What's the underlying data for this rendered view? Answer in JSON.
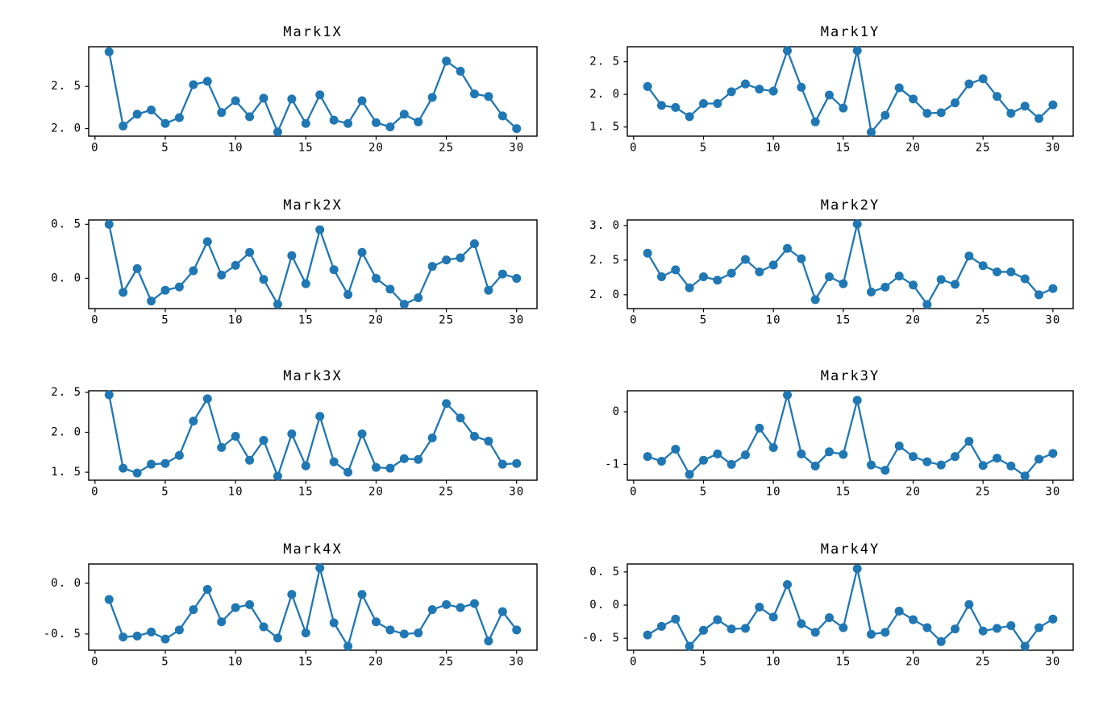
{
  "figure": {
    "background_color": "#ffffff",
    "accent_color": "#1f77b4",
    "axis_color": "#000000",
    "grid": false,
    "legend": null
  },
  "chart_data": [
    {
      "type": "line",
      "title": "Mark1X",
      "xlabel": "",
      "ylabel": "",
      "x": [
        1,
        2,
        3,
        4,
        5,
        6,
        7,
        8,
        9,
        10,
        11,
        12,
        13,
        14,
        15,
        16,
        17,
        18,
        19,
        20,
        21,
        22,
        23,
        24,
        25,
        26,
        27,
        28,
        29,
        30
      ],
      "values": [
        2.91,
        2.03,
        2.17,
        2.22,
        2.06,
        2.13,
        2.52,
        2.56,
        2.19,
        2.33,
        2.14,
        2.36,
        1.96,
        2.35,
        2.06,
        2.4,
        2.1,
        2.06,
        2.33,
        2.07,
        2.02,
        2.17,
        2.08,
        2.37,
        2.8,
        2.68,
        2.41,
        2.38,
        2.15,
        2.0
      ],
      "xlim": [
        -0.45,
        31.45
      ],
      "ylim": [
        1.91,
        2.97
      ],
      "xtick_values": [
        0,
        5,
        10,
        15,
        20,
        25,
        30
      ],
      "xtick_labels": [
        "0",
        "5",
        "10",
        "15",
        "20",
        "25",
        "30"
      ],
      "ytick_values": [
        2.5,
        2.0
      ],
      "ytick_labels": [
        "2. 5",
        "2. 0"
      ]
    },
    {
      "type": "line",
      "title": "Mark1Y",
      "xlabel": "",
      "ylabel": "",
      "x": [
        1,
        2,
        3,
        4,
        5,
        6,
        7,
        8,
        9,
        10,
        11,
        12,
        13,
        14,
        15,
        16,
        17,
        18,
        19,
        20,
        21,
        22,
        23,
        24,
        25,
        26,
        27,
        28,
        29,
        30
      ],
      "values": [
        2.12,
        1.83,
        1.8,
        1.66,
        1.86,
        1.86,
        2.04,
        2.16,
        2.08,
        2.05,
        2.67,
        2.11,
        1.58,
        1.99,
        1.79,
        2.67,
        1.42,
        1.68,
        2.1,
        1.93,
        1.71,
        1.72,
        1.87,
        2.16,
        2.24,
        1.97,
        1.71,
        1.82,
        1.63,
        1.84
      ],
      "xlim": [
        -0.45,
        31.45
      ],
      "ylim": [
        1.36,
        2.73
      ],
      "xtick_values": [
        0,
        5,
        10,
        15,
        20,
        25,
        30
      ],
      "xtick_labels": [
        "0",
        "5",
        "10",
        "15",
        "20",
        "25",
        "30"
      ],
      "ytick_values": [
        2.5,
        2.0,
        1.5
      ],
      "ytick_labels": [
        "2. 5",
        "2. 0",
        "1. 5"
      ]
    },
    {
      "type": "line",
      "title": "Mark2X",
      "xlabel": "",
      "ylabel": "",
      "x": [
        1,
        2,
        3,
        4,
        5,
        6,
        7,
        8,
        9,
        10,
        11,
        12,
        13,
        14,
        15,
        16,
        17,
        18,
        19,
        20,
        21,
        22,
        23,
        24,
        25,
        26,
        27,
        28,
        29,
        30
      ],
      "values": [
        0.5,
        -0.13,
        0.09,
        -0.21,
        -0.11,
        -0.08,
        0.07,
        0.34,
        0.03,
        0.12,
        0.24,
        -0.01,
        -0.24,
        0.21,
        -0.05,
        0.45,
        0.08,
        -0.15,
        0.24,
        0.0,
        -0.1,
        -0.24,
        -0.18,
        0.11,
        0.17,
        0.19,
        0.32,
        -0.11,
        0.04,
        0.0
      ],
      "xlim": [
        -0.45,
        31.45
      ],
      "ylim": [
        -0.28,
        0.54
      ],
      "xtick_values": [
        0,
        5,
        10,
        15,
        20,
        25,
        30
      ],
      "xtick_labels": [
        "0",
        "5",
        "10",
        "15",
        "20",
        "25",
        "30"
      ],
      "ytick_values": [
        0.5,
        0.0
      ],
      "ytick_labels": [
        "0. 5",
        "0. 0"
      ]
    },
    {
      "type": "line",
      "title": "Mark2Y",
      "xlabel": "",
      "ylabel": "",
      "x": [
        1,
        2,
        3,
        4,
        5,
        6,
        7,
        8,
        9,
        10,
        11,
        12,
        13,
        14,
        15,
        16,
        17,
        18,
        19,
        20,
        21,
        22,
        23,
        24,
        25,
        26,
        27,
        28,
        29,
        30
      ],
      "values": [
        2.6,
        2.26,
        2.36,
        2.1,
        2.26,
        2.21,
        2.31,
        2.51,
        2.33,
        2.43,
        2.67,
        2.52,
        1.93,
        2.26,
        2.16,
        3.02,
        2.04,
        2.11,
        2.27,
        2.14,
        1.86,
        2.22,
        2.15,
        2.56,
        2.42,
        2.33,
        2.33,
        2.23,
        2.0,
        2.09
      ],
      "xlim": [
        -0.45,
        31.45
      ],
      "ylim": [
        1.8,
        3.08
      ],
      "xtick_values": [
        0,
        5,
        10,
        15,
        20,
        25,
        30
      ],
      "xtick_labels": [
        "0",
        "5",
        "10",
        "15",
        "20",
        "25",
        "30"
      ],
      "ytick_values": [
        3.0,
        2.5,
        2.0
      ],
      "ytick_labels": [
        "3. 0",
        "2. 5",
        "2. 0"
      ]
    },
    {
      "type": "line",
      "title": "Mark3X",
      "xlabel": "",
      "ylabel": "",
      "x": [
        1,
        2,
        3,
        4,
        5,
        6,
        7,
        8,
        9,
        10,
        11,
        12,
        13,
        14,
        15,
        16,
        17,
        18,
        19,
        20,
        21,
        22,
        23,
        24,
        25,
        26,
        27,
        28,
        29,
        30
      ],
      "values": [
        2.47,
        1.55,
        1.49,
        1.6,
        1.61,
        1.71,
        2.14,
        2.42,
        1.81,
        1.95,
        1.65,
        1.9,
        1.45,
        1.98,
        1.58,
        2.2,
        1.63,
        1.5,
        1.98,
        1.56,
        1.55,
        1.67,
        1.66,
        1.93,
        2.36,
        2.18,
        1.95,
        1.89,
        1.6,
        1.61
      ],
      "xlim": [
        -0.45,
        31.45
      ],
      "ylim": [
        1.4,
        2.52
      ],
      "xtick_values": [
        0,
        5,
        10,
        15,
        20,
        25,
        30
      ],
      "xtick_labels": [
        "0",
        "5",
        "10",
        "15",
        "20",
        "25",
        "30"
      ],
      "ytick_values": [
        2.5,
        2.0,
        1.5
      ],
      "ytick_labels": [
        "2. 5",
        "2. 0",
        "1. 5"
      ]
    },
    {
      "type": "line",
      "title": "Mark3Y",
      "xlabel": "",
      "ylabel": "",
      "x": [
        1,
        2,
        3,
        4,
        5,
        6,
        7,
        8,
        9,
        10,
        11,
        12,
        13,
        14,
        15,
        16,
        17,
        18,
        19,
        20,
        21,
        22,
        23,
        24,
        25,
        26,
        27,
        28,
        29,
        30
      ],
      "values": [
        -0.85,
        -0.94,
        -0.71,
        -1.19,
        -0.92,
        -0.8,
        -1.0,
        -0.82,
        -0.31,
        -0.68,
        0.32,
        -0.8,
        -1.03,
        -0.76,
        -0.81,
        0.22,
        -1.01,
        -1.11,
        -0.65,
        -0.85,
        -0.95,
        -1.01,
        -0.85,
        -0.56,
        -1.02,
        -0.88,
        -1.03,
        -1.22,
        -0.9,
        -0.79
      ],
      "xlim": [
        -0.45,
        31.45
      ],
      "ylim": [
        -1.3,
        0.4
      ],
      "xtick_values": [
        0,
        5,
        10,
        15,
        20,
        25,
        30
      ],
      "xtick_labels": [
        "0",
        "5",
        "10",
        "15",
        "20",
        "25",
        "30"
      ],
      "ytick_values": [
        0,
        -1
      ],
      "ytick_labels": [
        "0",
        "-1"
      ]
    },
    {
      "type": "line",
      "title": "Mark4X",
      "xlabel": "",
      "ylabel": "",
      "x": [
        1,
        2,
        3,
        4,
        5,
        6,
        7,
        8,
        9,
        10,
        11,
        12,
        13,
        14,
        15,
        16,
        17,
        18,
        19,
        20,
        21,
        22,
        23,
        24,
        25,
        26,
        27,
        28,
        29,
        30
      ],
      "values": [
        -0.16,
        -0.53,
        -0.52,
        -0.48,
        -0.55,
        -0.46,
        -0.26,
        -0.06,
        -0.38,
        -0.24,
        -0.21,
        -0.43,
        -0.54,
        -0.11,
        -0.49,
        0.15,
        -0.39,
        -0.62,
        -0.11,
        -0.38,
        -0.46,
        -0.5,
        -0.49,
        -0.26,
        -0.21,
        -0.24,
        -0.2,
        -0.57,
        -0.28,
        -0.46
      ],
      "xlim": [
        -0.45,
        31.45
      ],
      "ylim": [
        -0.66,
        0.19
      ],
      "xtick_values": [
        0,
        5,
        10,
        15,
        20,
        25,
        30
      ],
      "xtick_labels": [
        "0",
        "5",
        "10",
        "15",
        "20",
        "25",
        "30"
      ],
      "ytick_values": [
        0.0,
        -0.5
      ],
      "ytick_labels": [
        "0. 0",
        "-0. 5"
      ]
    },
    {
      "type": "line",
      "title": "Mark4Y",
      "xlabel": "",
      "ylabel": "",
      "x": [
        1,
        2,
        3,
        4,
        5,
        6,
        7,
        8,
        9,
        10,
        11,
        12,
        13,
        14,
        15,
        16,
        17,
        18,
        19,
        20,
        21,
        22,
        23,
        24,
        25,
        26,
        27,
        28,
        29,
        30
      ],
      "values": [
        -0.45,
        -0.32,
        -0.21,
        -0.62,
        -0.38,
        -0.22,
        -0.36,
        -0.35,
        -0.03,
        -0.18,
        0.31,
        -0.28,
        -0.41,
        -0.19,
        -0.34,
        0.55,
        -0.44,
        -0.41,
        -0.09,
        -0.22,
        -0.34,
        -0.55,
        -0.36,
        0.01,
        -0.39,
        -0.35,
        -0.31,
        -0.62,
        -0.34,
        -0.21
      ],
      "xlim": [
        -0.45,
        31.45
      ],
      "ylim": [
        -0.68,
        0.62
      ],
      "xtick_values": [
        0,
        5,
        10,
        15,
        20,
        25,
        30
      ],
      "xtick_labels": [
        "0",
        "5",
        "10",
        "15",
        "20",
        "25",
        "30"
      ],
      "ytick_values": [
        0.5,
        0.0,
        -0.5
      ],
      "ytick_labels": [
        "0. 5",
        "0. 0",
        "-0. 5"
      ]
    }
  ]
}
